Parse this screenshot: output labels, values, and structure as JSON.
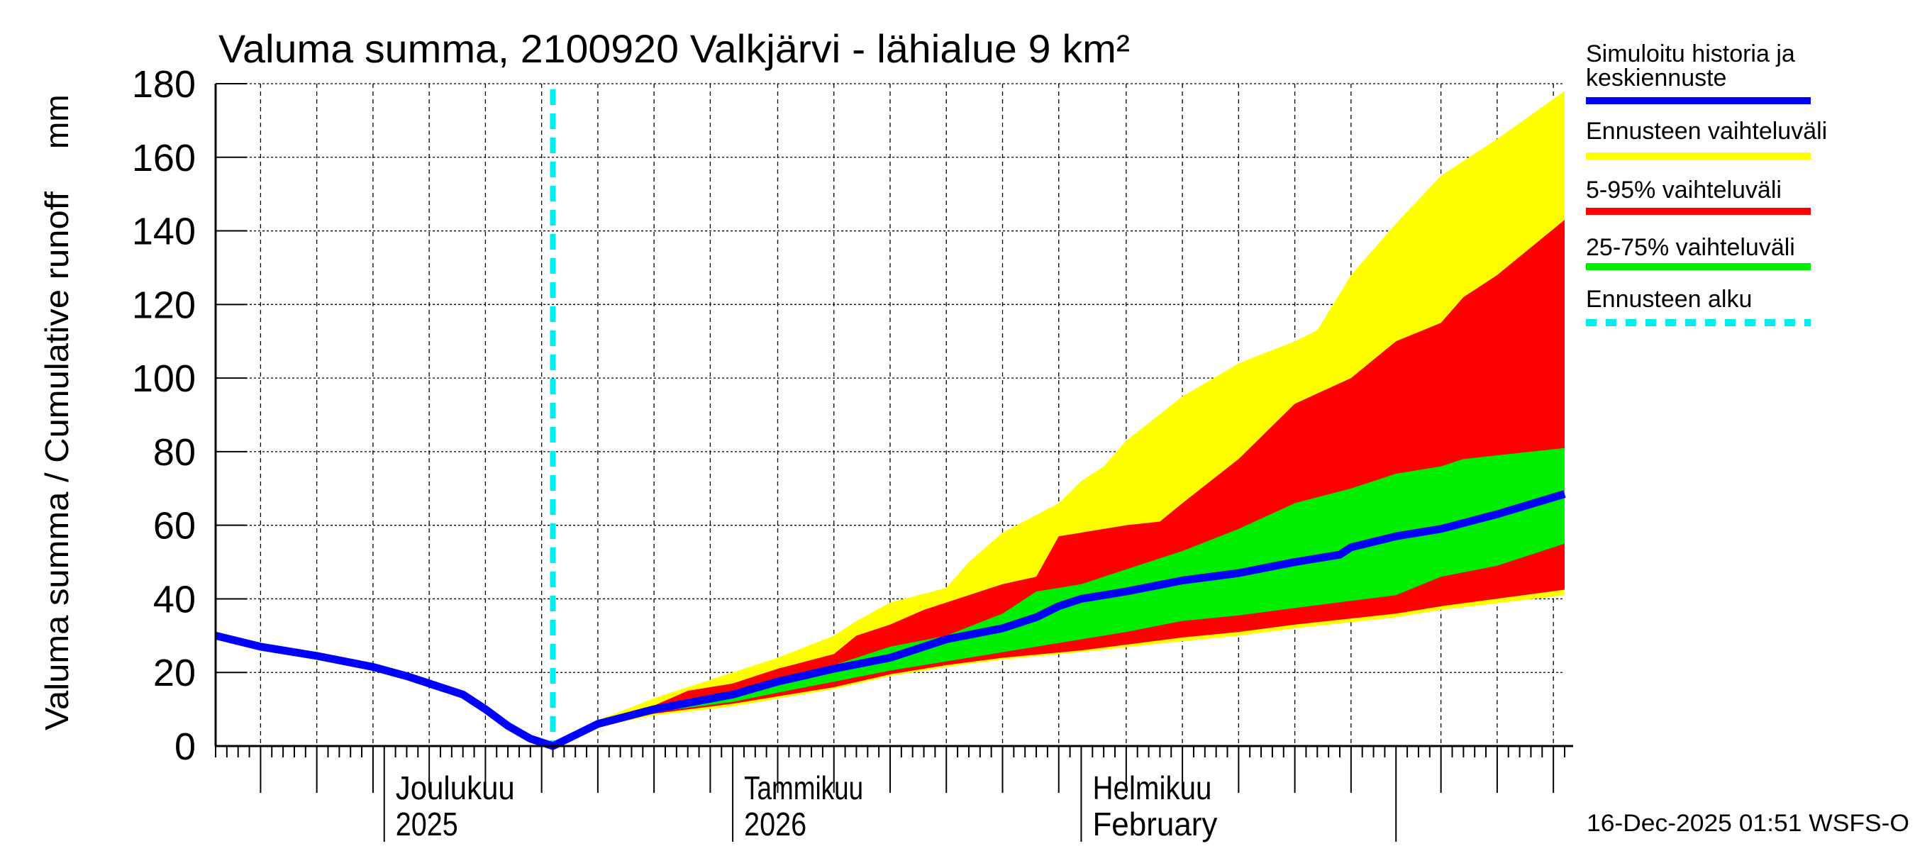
{
  "chart_data": {
    "type": "area",
    "title": "Valuma summa, 2100920 Valkjärvi - lähialue 9 km²",
    "ylabel": "Valuma summa / Cumulative runoff",
    "yunit": "mm",
    "ylim": [
      0,
      180
    ],
    "yticks": [
      0,
      20,
      40,
      60,
      80,
      100,
      120,
      140,
      160,
      180
    ],
    "xlim": [
      "2025-11-16",
      "2026-03-16"
    ],
    "grid": true,
    "legend_placement": "right",
    "forecast_start": "2025-12-16",
    "month_labels": [
      {
        "date": "2025-12-01",
        "line1": "Joulukuu",
        "line2": "2025"
      },
      {
        "date": "2026-01-01",
        "line1": "Tammikuu",
        "line2": "2026"
      },
      {
        "date": "2026-02-01",
        "line1": "Helmikuu",
        "line2": "February"
      }
    ],
    "colors": {
      "median": "#0000ff",
      "full_range": "#ffff00",
      "p5_95": "#ff0000",
      "p25_75": "#00ee00",
      "forecast_start": "#00eeee"
    },
    "legend": [
      {
        "label_line1": "Simuloitu historia ja",
        "label_line2": "keskiennuste",
        "key": "median"
      },
      {
        "label_line1": "Ennusteen vaihteluväli",
        "key": "full_range"
      },
      {
        "label_line1": "5-95% vaihteluväli",
        "key": "p5_95"
      },
      {
        "label_line1": "25-75% vaihteluväli",
        "key": "p25_75"
      },
      {
        "label_line1": "Ennusteen alku",
        "key": "forecast_start"
      }
    ],
    "series": {
      "median": [
        [
          "2025-11-16",
          30
        ],
        [
          "2025-11-20",
          27
        ],
        [
          "2025-11-25",
          24.5
        ],
        [
          "2025-11-30",
          21.5
        ],
        [
          "2025-12-03",
          19
        ],
        [
          "2025-12-06",
          16
        ],
        [
          "2025-12-08",
          14
        ],
        [
          "2025-12-10",
          10
        ],
        [
          "2025-12-12",
          5.5
        ],
        [
          "2025-12-14",
          2
        ],
        [
          "2025-12-16",
          0
        ],
        [
          "2025-12-20",
          6
        ],
        [
          "2025-12-25",
          10
        ],
        [
          "2026-01-01",
          14
        ],
        [
          "2026-01-05",
          17.5
        ],
        [
          "2026-01-10",
          21
        ],
        [
          "2026-01-15",
          24
        ],
        [
          "2026-01-18",
          27
        ],
        [
          "2026-01-20",
          29
        ],
        [
          "2026-01-25",
          32
        ],
        [
          "2026-01-28",
          35
        ],
        [
          "2026-01-30",
          38
        ],
        [
          "2026-02-01",
          40
        ],
        [
          "2026-02-05",
          42
        ],
        [
          "2026-02-10",
          45
        ],
        [
          "2026-02-15",
          47
        ],
        [
          "2026-02-20",
          50
        ],
        [
          "2026-02-24",
          52
        ],
        [
          "2026-02-25",
          54
        ],
        [
          "2026-03-01",
          57
        ],
        [
          "2026-03-05",
          59
        ],
        [
          "2026-03-10",
          63
        ],
        [
          "2026-03-16",
          68.5
        ]
      ],
      "full_range_upper": [
        [
          "2025-12-16",
          0
        ],
        [
          "2025-12-20",
          7
        ],
        [
          "2025-12-25",
          13
        ],
        [
          "2026-01-01",
          20
        ],
        [
          "2026-01-05",
          24
        ],
        [
          "2026-01-10",
          30
        ],
        [
          "2026-01-12",
          34
        ],
        [
          "2026-01-15",
          39
        ],
        [
          "2026-01-20",
          43
        ],
        [
          "2026-01-22",
          50
        ],
        [
          "2026-01-25",
          58
        ],
        [
          "2026-01-30",
          66
        ],
        [
          "2026-02-01",
          72
        ],
        [
          "2026-02-03",
          76
        ],
        [
          "2026-02-05",
          83
        ],
        [
          "2026-02-10",
          95
        ],
        [
          "2026-02-15",
          104
        ],
        [
          "2026-02-20",
          110
        ],
        [
          "2026-02-22",
          113
        ],
        [
          "2026-02-25",
          128
        ],
        [
          "2026-03-01",
          142
        ],
        [
          "2026-03-05",
          155
        ],
        [
          "2026-03-10",
          165
        ],
        [
          "2026-03-16",
          178
        ]
      ],
      "full_range_lower": [
        [
          "2025-12-16",
          0
        ],
        [
          "2025-12-20",
          5.3
        ],
        [
          "2025-12-25",
          8.3
        ],
        [
          "2026-01-01",
          10.8
        ],
        [
          "2026-01-10",
          15.5
        ],
        [
          "2026-01-15",
          19
        ],
        [
          "2026-01-20",
          21.5
        ],
        [
          "2026-01-25",
          23.5
        ],
        [
          "2026-02-01",
          25.5
        ],
        [
          "2026-02-10",
          28.5
        ],
        [
          "2026-02-15",
          30
        ],
        [
          "2026-02-20",
          32
        ],
        [
          "2026-03-01",
          35
        ],
        [
          "2026-03-05",
          37
        ],
        [
          "2026-03-16",
          41
        ]
      ],
      "p95": [
        [
          "2025-12-16",
          0
        ],
        [
          "2025-12-20",
          6.5
        ],
        [
          "2025-12-25",
          11
        ],
        [
          "2025-12-28",
          15
        ],
        [
          "2026-01-01",
          17
        ],
        [
          "2026-01-05",
          21
        ],
        [
          "2026-01-10",
          25
        ],
        [
          "2026-01-12",
          30
        ],
        [
          "2026-01-15",
          33
        ],
        [
          "2026-01-18",
          37
        ],
        [
          "2026-01-20",
          39
        ],
        [
          "2026-01-25",
          44
        ],
        [
          "2026-01-28",
          46
        ],
        [
          "2026-01-30",
          57
        ],
        [
          "2026-02-05",
          60
        ],
        [
          "2026-02-08",
          61
        ],
        [
          "2026-02-10",
          66
        ],
        [
          "2026-02-15",
          78
        ],
        [
          "2026-02-20",
          93
        ],
        [
          "2026-02-25",
          100
        ],
        [
          "2026-03-01",
          110
        ],
        [
          "2026-03-05",
          115
        ],
        [
          "2026-03-07",
          122
        ],
        [
          "2026-03-10",
          128
        ],
        [
          "2026-03-16",
          143
        ]
      ],
      "p5": [
        [
          "2025-12-16",
          0
        ],
        [
          "2025-12-20",
          5.5
        ],
        [
          "2025-12-25",
          8.8
        ],
        [
          "2026-01-01",
          11.5
        ],
        [
          "2026-01-10",
          16
        ],
        [
          "2026-01-15",
          19.5
        ],
        [
          "2026-01-20",
          22
        ],
        [
          "2026-01-25",
          24
        ],
        [
          "2026-02-01",
          26
        ],
        [
          "2026-02-10",
          29.5
        ],
        [
          "2026-02-15",
          31
        ],
        [
          "2026-02-20",
          33
        ],
        [
          "2026-03-01",
          36
        ],
        [
          "2026-03-05",
          38
        ],
        [
          "2026-03-16",
          42.5
        ]
      ],
      "p75": [
        [
          "2025-12-16",
          0
        ],
        [
          "2025-12-20",
          6
        ],
        [
          "2025-12-25",
          10.5
        ],
        [
          "2026-01-01",
          14
        ],
        [
          "2026-01-05",
          18
        ],
        [
          "2026-01-10",
          22
        ],
        [
          "2026-01-15",
          27
        ],
        [
          "2026-01-20",
          30
        ],
        [
          "2026-01-25",
          36
        ],
        [
          "2026-01-28",
          42
        ],
        [
          "2026-02-01",
          44
        ],
        [
          "2026-02-05",
          48
        ],
        [
          "2026-02-10",
          53
        ],
        [
          "2026-02-15",
          59
        ],
        [
          "2026-02-20",
          66
        ],
        [
          "2026-02-25",
          70
        ],
        [
          "2026-03-01",
          74
        ],
        [
          "2026-03-05",
          76
        ],
        [
          "2026-03-07",
          78
        ],
        [
          "2026-03-16",
          81
        ]
      ],
      "p25": [
        [
          "2025-12-16",
          0
        ],
        [
          "2025-12-20",
          5.7
        ],
        [
          "2025-12-25",
          9.2
        ],
        [
          "2026-01-01",
          12
        ],
        [
          "2026-01-05",
          14.5
        ],
        [
          "2026-01-10",
          17.5
        ],
        [
          "2026-01-15",
          20.5
        ],
        [
          "2026-01-20",
          23
        ],
        [
          "2026-01-25",
          25.5
        ],
        [
          "2026-02-01",
          29
        ],
        [
          "2026-02-05",
          31
        ],
        [
          "2026-02-10",
          34
        ],
        [
          "2026-02-15",
          35.5
        ],
        [
          "2026-02-20",
          37.5
        ],
        [
          "2026-03-01",
          41
        ],
        [
          "2026-03-05",
          46
        ],
        [
          "2026-03-10",
          49
        ],
        [
          "2026-03-16",
          55
        ]
      ]
    }
  },
  "footer": {
    "timestamp": "16-Dec-2025 01:51 WSFS-O"
  }
}
